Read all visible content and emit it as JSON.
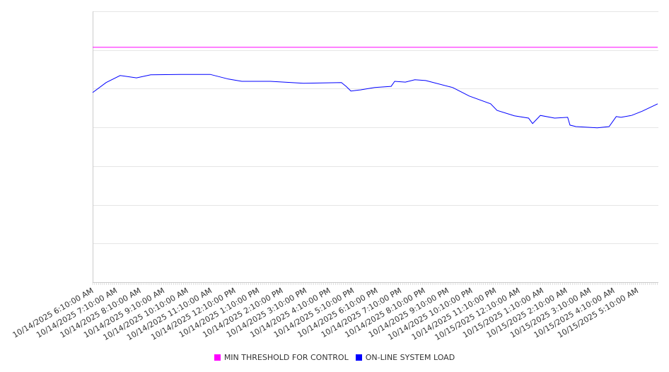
{
  "chart_data": {
    "type": "line",
    "title": "",
    "xlabel": "",
    "ylabel": "",
    "x_unit": "hours since 10/14/2025 6:10:00 AM",
    "xlim": [
      0,
      23.85
    ],
    "ylim": [
      0,
      70
    ],
    "y_grid_step": 10,
    "y_tick_labels_visible": false,
    "grid": true,
    "legend_position": "bottom",
    "x_tick_labels": [
      "10/14/2025 6:10:00 AM",
      "10/14/2025 7:10:00 AM",
      "10/14/2025 8:10:00 AM",
      "10/14/2025 9:10:00 AM",
      "10/14/2025 10:10:00 AM",
      "10/14/2025 11:10:00 AM",
      "10/14/2025 12:10:00 PM",
      "10/14/2025 1:10:00 PM",
      "10/14/2025 2:10:00 PM",
      "10/14/2025 3:10:00 PM",
      "10/14/2025 4:10:00 PM",
      "10/14/2025 5:10:00 PM",
      "10/14/2025 6:10:00 PM",
      "10/14/2025 7:10:00 PM",
      "10/14/2025 8:10:00 PM",
      "10/14/2025 9:10:00 PM",
      "10/14/2025 10:10:00 PM",
      "10/14/2025 11:10:00 PM",
      "10/15/2025 12:10:00 AM",
      "10/15/2025 1:10:00 AM",
      "10/15/2025 2:10:00 AM",
      "10/15/2025 3:10:00 AM",
      "10/15/2025 4:10:00 AM",
      "10/15/2025 5:10:00 AM"
    ],
    "series": [
      {
        "name": "MIN THRESHOLD FOR CONTROL",
        "color": "#ff00ff",
        "x": [
          0,
          23.85
        ],
        "y": [
          60.7,
          60.7
        ]
      },
      {
        "name": "ON-LINE SYSTEM LOAD",
        "color": "#0000ff",
        "x": [
          0,
          0.57,
          1.16,
          1.85,
          2.45,
          3.76,
          4.96,
          5.73,
          6.3,
          7.5,
          8.9,
          10.5,
          10.7,
          10.9,
          11.3,
          11.9,
          12.6,
          12.75,
          13.2,
          13.6,
          14.06,
          15.2,
          15.9,
          16.8,
          17.07,
          17.8,
          18.4,
          18.57,
          18.9,
          19.5,
          20.05,
          20.15,
          20.4,
          21.3,
          21.8,
          22.1,
          22.3,
          22.75,
          23.2,
          23.85
        ],
        "y": [
          49.0,
          51.6,
          53.4,
          52.8,
          53.6,
          53.7,
          53.7,
          52.5,
          51.9,
          51.9,
          51.4,
          51.6,
          50.6,
          49.4,
          49.7,
          50.3,
          50.6,
          51.9,
          51.7,
          52.3,
          52.1,
          50.3,
          48.1,
          46.1,
          44.4,
          43.0,
          42.4,
          41.0,
          43.1,
          42.4,
          42.6,
          40.6,
          40.2,
          39.9,
          40.2,
          42.8,
          42.6,
          43.1,
          44.2,
          46.1
        ]
      }
    ]
  }
}
